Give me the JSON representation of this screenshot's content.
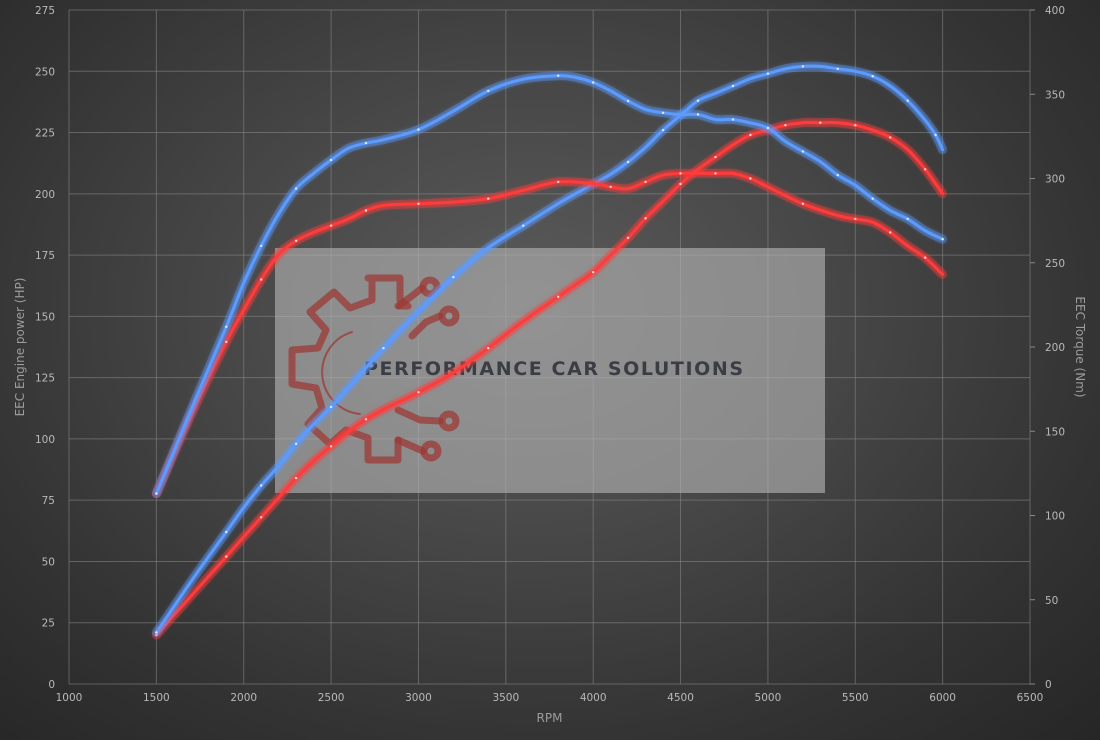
{
  "chart_data": {
    "type": "line",
    "xlabel": "RPM",
    "ylabel_left": "EEC Engine power (HP)",
    "ylabel_right": "EEC Torque (Nm)",
    "xlim": [
      1000,
      6500
    ],
    "ylim_left": [
      0,
      275
    ],
    "ylim_right": [
      0,
      400
    ],
    "x_ticks": [
      1000,
      1500,
      2000,
      2500,
      3000,
      3500,
      4000,
      4500,
      5000,
      5500,
      6000,
      6500
    ],
    "y_left_ticks": [
      0,
      25,
      50,
      75,
      100,
      125,
      150,
      175,
      200,
      225,
      250,
      275
    ],
    "y_right_ticks": [
      0,
      50,
      100,
      150,
      200,
      250,
      300,
      350,
      400
    ],
    "grid": true,
    "series": [
      {
        "axis": "left",
        "color": "#ff3b3b",
        "x": [
          1500,
          1700,
          1900,
          2000,
          2100,
          2200,
          2300,
          2400,
          2500,
          2600,
          2700,
          2800,
          3000,
          3200,
          3400,
          3600,
          3800,
          3900,
          4000,
          4100,
          4200,
          4250,
          4300,
          4400,
          4500,
          4600,
          4700,
          4800,
          4900,
          5000,
          5100,
          5200,
          5300,
          5400,
          5500,
          5600,
          5700,
          5800,
          5900,
          6000
        ],
        "values": [
          20,
          36,
          52,
          60,
          68,
          76,
          84,
          91,
          97,
          103,
          108,
          112,
          119,
          127,
          137,
          148,
          158,
          163,
          168,
          175,
          182,
          186,
          190,
          197,
          204,
          210,
          215,
          220,
          224,
          226,
          228,
          229,
          229,
          229,
          228,
          226,
          223,
          218,
          210,
          200
        ]
      },
      {
        "axis": "left",
        "color": "#5b9bff",
        "x": [
          1500,
          1700,
          1900,
          2000,
          2100,
          2200,
          2300,
          2400,
          2500,
          2600,
          2800,
          3000,
          3200,
          3400,
          3600,
          3800,
          4000,
          4100,
          4200,
          4300,
          4400,
          4500,
          4600,
          4700,
          4800,
          4900,
          5000,
          5100,
          5200,
          5300,
          5400,
          5500,
          5600,
          5700,
          5800,
          5900,
          5960,
          6000
        ],
        "values": [
          21,
          42,
          62,
          72,
          81,
          89,
          98,
          106,
          113,
          121,
          137,
          152,
          166,
          178,
          187,
          196,
          204,
          208,
          213,
          219,
          226,
          232,
          238,
          241,
          244,
          247,
          249,
          251,
          252,
          252,
          251,
          250,
          248,
          244,
          238,
          230,
          224,
          218
        ]
      },
      {
        "axis": "right",
        "color": "#ff3b3b",
        "x": [
          1500,
          1700,
          1900,
          2000,
          2100,
          2200,
          2300,
          2400,
          2500,
          2600,
          2700,
          2800,
          3000,
          3200,
          3400,
          3600,
          3800,
          4000,
          4100,
          4200,
          4300,
          4400,
          4500,
          4600,
          4700,
          4800,
          4900,
          5000,
          5200,
          5400,
          5500,
          5600,
          5700,
          5800,
          5900,
          6000
        ],
        "values": [
          113,
          160,
          203,
          222,
          240,
          255,
          263,
          268,
          272,
          276,
          281,
          284,
          285,
          286,
          288,
          293,
          298,
          297,
          295,
          294,
          298,
          302,
          303,
          303,
          303,
          303,
          300,
          295,
          285,
          278,
          276,
          274,
          268,
          260,
          253,
          243
        ]
      },
      {
        "axis": "right",
        "color": "#5b9bff",
        "x": [
          1500,
          1700,
          1900,
          2000,
          2100,
          2200,
          2300,
          2400,
          2500,
          2600,
          2700,
          2800,
          3000,
          3200,
          3400,
          3600,
          3800,
          3900,
          4000,
          4100,
          4200,
          4300,
          4400,
          4500,
          4600,
          4700,
          4800,
          4900,
          5000,
          5100,
          5200,
          5300,
          5400,
          5500,
          5600,
          5700,
          5800,
          5900,
          6000
        ],
        "values": [
          113,
          163,
          212,
          238,
          260,
          279,
          294,
          303,
          311,
          318,
          321,
          323,
          329,
          340,
          352,
          359,
          361,
          360,
          357,
          352,
          346,
          341,
          339,
          338,
          338,
          335,
          335,
          333,
          330,
          322,
          316,
          310,
          302,
          296,
          288,
          281,
          276,
          269,
          264
        ]
      }
    ]
  },
  "logo": {
    "brand": "PERFORMANCE CAR SOLUTIONS",
    "icon": "gear-circuit-logo-icon"
  }
}
